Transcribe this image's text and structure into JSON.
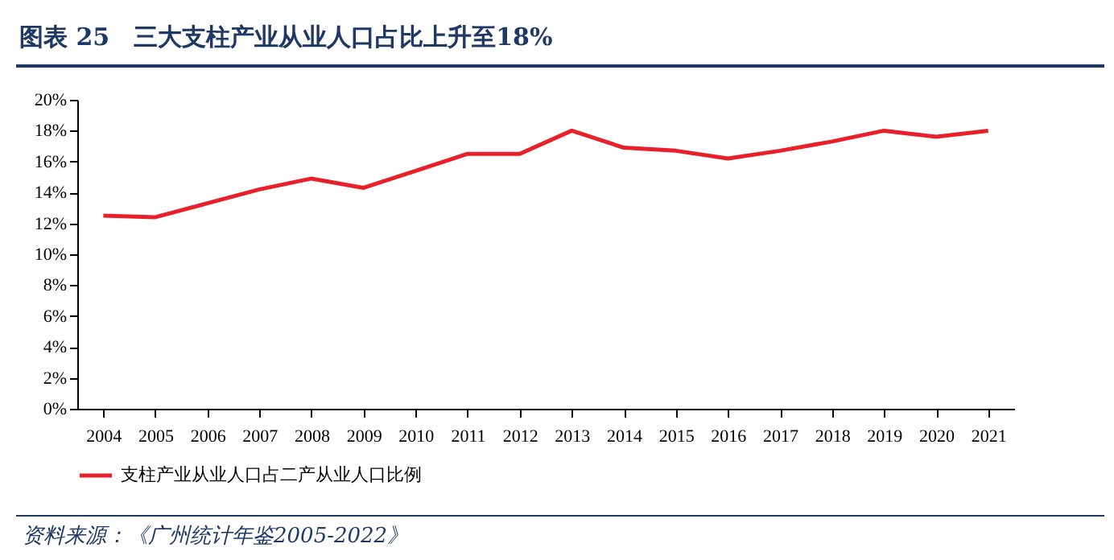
{
  "chart_data": {
    "type": "line",
    "title": "图表 25　三大支柱产业从业人口占比上升至18%",
    "categories": [
      "2004",
      "2005",
      "2006",
      "2007",
      "2008",
      "2009",
      "2010",
      "2011",
      "2012",
      "2013",
      "2014",
      "2015",
      "2016",
      "2017",
      "2018",
      "2019",
      "2020",
      "2021"
    ],
    "series": [
      {
        "name": "支柱产业从业人口占二产从业人口比例",
        "color": "#e8202a",
        "values": [
          12.5,
          12.4,
          13.3,
          14.2,
          14.9,
          14.3,
          15.4,
          16.5,
          16.5,
          18.0,
          16.9,
          16.7,
          16.2,
          16.7,
          17.3,
          18.0,
          17.6,
          18.0
        ]
      }
    ],
    "ylim": [
      0,
      20
    ],
    "yticks": [
      {
        "value": 0,
        "label": "0%"
      },
      {
        "value": 2,
        "label": "2%"
      },
      {
        "value": 4,
        "label": "4%"
      },
      {
        "value": 6,
        "label": "6%"
      },
      {
        "value": 8,
        "label": "8%"
      },
      {
        "value": 10,
        "label": "10%"
      },
      {
        "value": 12,
        "label": "12%"
      },
      {
        "value": 14,
        "label": "14%"
      },
      {
        "value": 16,
        "label": "16%"
      },
      {
        "value": 18,
        "label": "18%"
      },
      {
        "value": 20,
        "label": "20%"
      }
    ],
    "grid": false,
    "legend": "bottom",
    "marker": "none",
    "line_style": "solid",
    "annotations": [
      "资料来源：《广州统计年鉴2005-2022》"
    ]
  }
}
